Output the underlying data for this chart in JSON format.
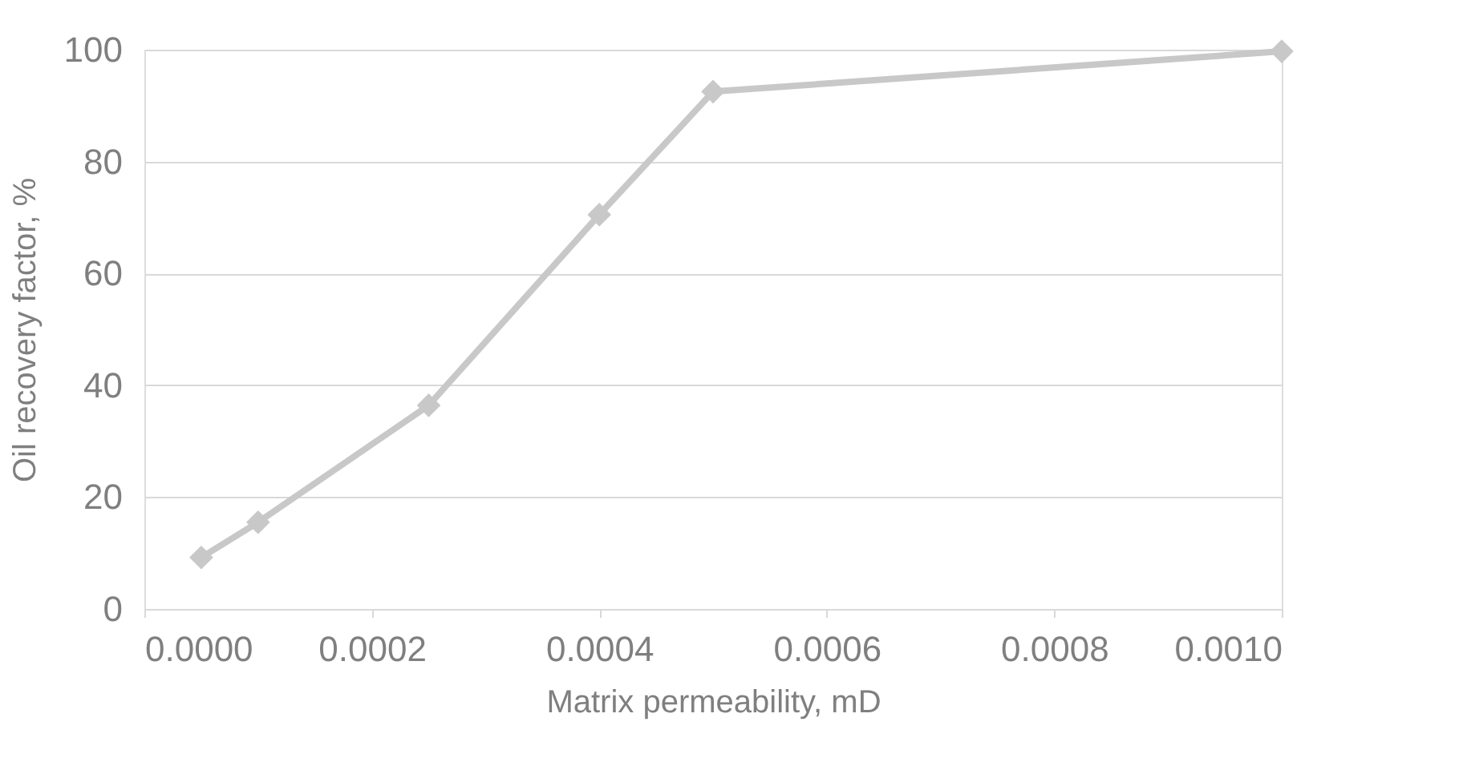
{
  "chart_data": {
    "type": "line",
    "xlabel": "Matrix permeability, mD",
    "ylabel": "Oil recovery factor, %",
    "x": [
      5e-05,
      0.0001,
      0.00025,
      0.0004,
      0.0005,
      0.001
    ],
    "series": [
      {
        "color": "#c8c8c8",
        "values": [
          9.2,
          15.5,
          36.4,
          70.5,
          92.5,
          99.7
        ]
      }
    ],
    "xlim": [
      0,
      0.001
    ],
    "ylim": [
      0,
      100
    ],
    "xticks": [
      {
        "value": 0,
        "label": "0.0000"
      },
      {
        "value": 0.0002,
        "label": "0.0002"
      },
      {
        "value": 0.0004,
        "label": "0.0004"
      },
      {
        "value": 0.0006,
        "label": "0.0006"
      },
      {
        "value": 0.0008,
        "label": "0.0008"
      },
      {
        "value": 0.001,
        "label": "0.0010"
      }
    ],
    "yticks": [
      0,
      20,
      40,
      60,
      80,
      100
    ],
    "grid": "y",
    "marker": "diamond",
    "line_style": "solid"
  }
}
